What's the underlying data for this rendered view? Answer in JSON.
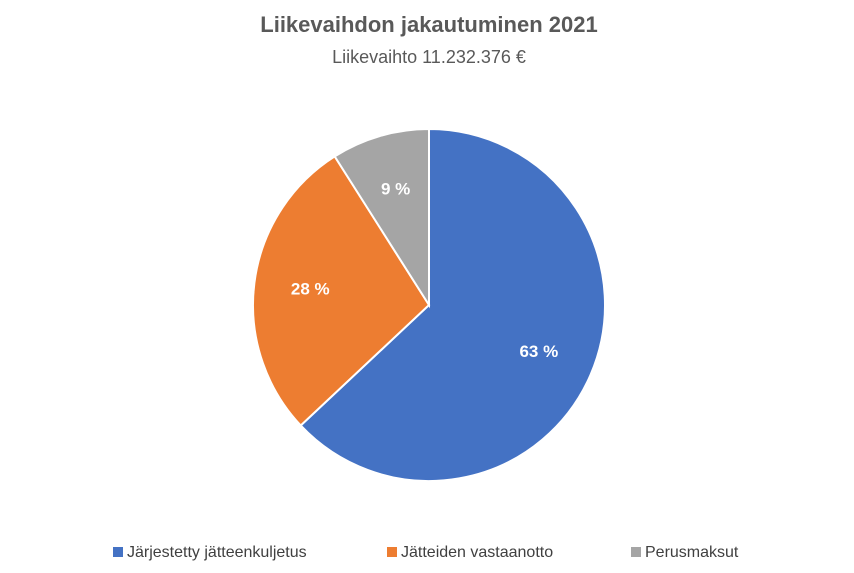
{
  "chart_data": {
    "type": "pie",
    "title": "Liikevaihdon jakautuminen 2021",
    "subtitle": "Liikevaihto 11.232.376 €",
    "categories": [
      "Järjestetty jätteenkuljetus",
      "Jätteiden vastaanotto",
      "Perusmaksut"
    ],
    "values": [
      63,
      28,
      9
    ],
    "value_labels": [
      "63 %",
      "28 %",
      "9 %"
    ],
    "colors": [
      "#4472c4",
      "#ed7d31",
      "#a5a5a5"
    ],
    "legend": "bottom"
  }
}
